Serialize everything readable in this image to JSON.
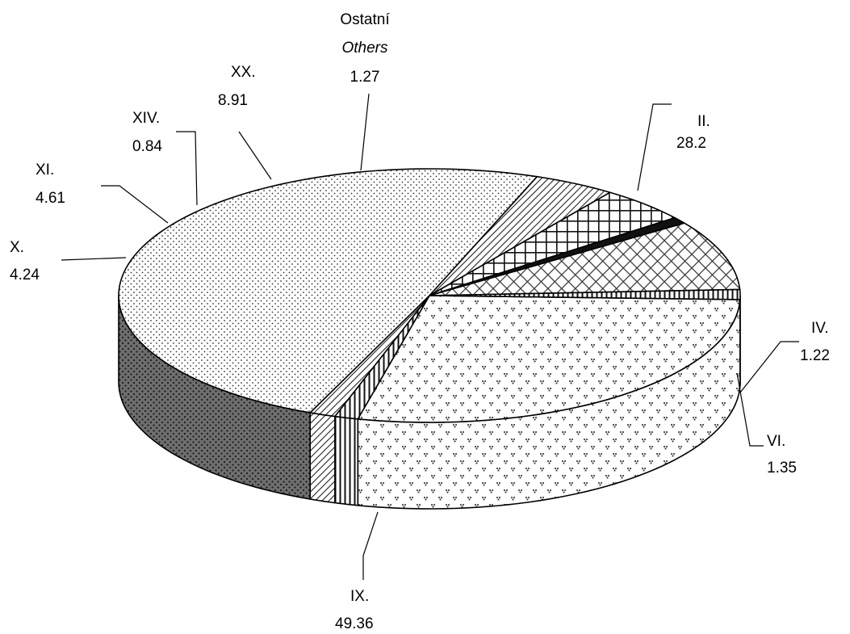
{
  "chart_data": {
    "type": "pie",
    "style": "3d",
    "title": "",
    "slices": [
      {
        "key": "II",
        "label": "II.",
        "sublabel": "",
        "value": 28.2,
        "value_text": "28,20%",
        "pattern": "diamond-dots"
      },
      {
        "key": "IV",
        "label": "IV.",
        "sublabel": "",
        "value": 1.22,
        "value_text": "1,22%",
        "pattern": "vertical-bars"
      },
      {
        "key": "VI",
        "label": "VI.",
        "sublabel": "",
        "value": 1.35,
        "value_text": "1,35%",
        "pattern": "diagonal-hatch"
      },
      {
        "key": "IX",
        "label": "IX.",
        "sublabel": "",
        "value": 49.36,
        "value_text": "49,36%",
        "pattern": "fine-dots"
      },
      {
        "key": "X",
        "label": "X.",
        "sublabel": "",
        "value": 4.24,
        "value_text": "4,24%",
        "pattern": "diagonal-hatch"
      },
      {
        "key": "XI",
        "label": "XI.",
        "sublabel": "",
        "value": 4.61,
        "value_text": "4,61%",
        "pattern": "square-grid"
      },
      {
        "key": "XIV",
        "label": "XIV.",
        "sublabel": "",
        "value": 0.84,
        "value_text": "0,84%",
        "pattern": "solid-black"
      },
      {
        "key": "XX",
        "label": "XX.",
        "sublabel": "",
        "value": 8.91,
        "value_text": "8,91%",
        "pattern": "cross-hatch"
      },
      {
        "key": "OTHERS",
        "label": "Ostatní",
        "sublabel": "Others",
        "value": 1.27,
        "value_text": "1,27%",
        "pattern": "vertical-bars"
      }
    ]
  }
}
